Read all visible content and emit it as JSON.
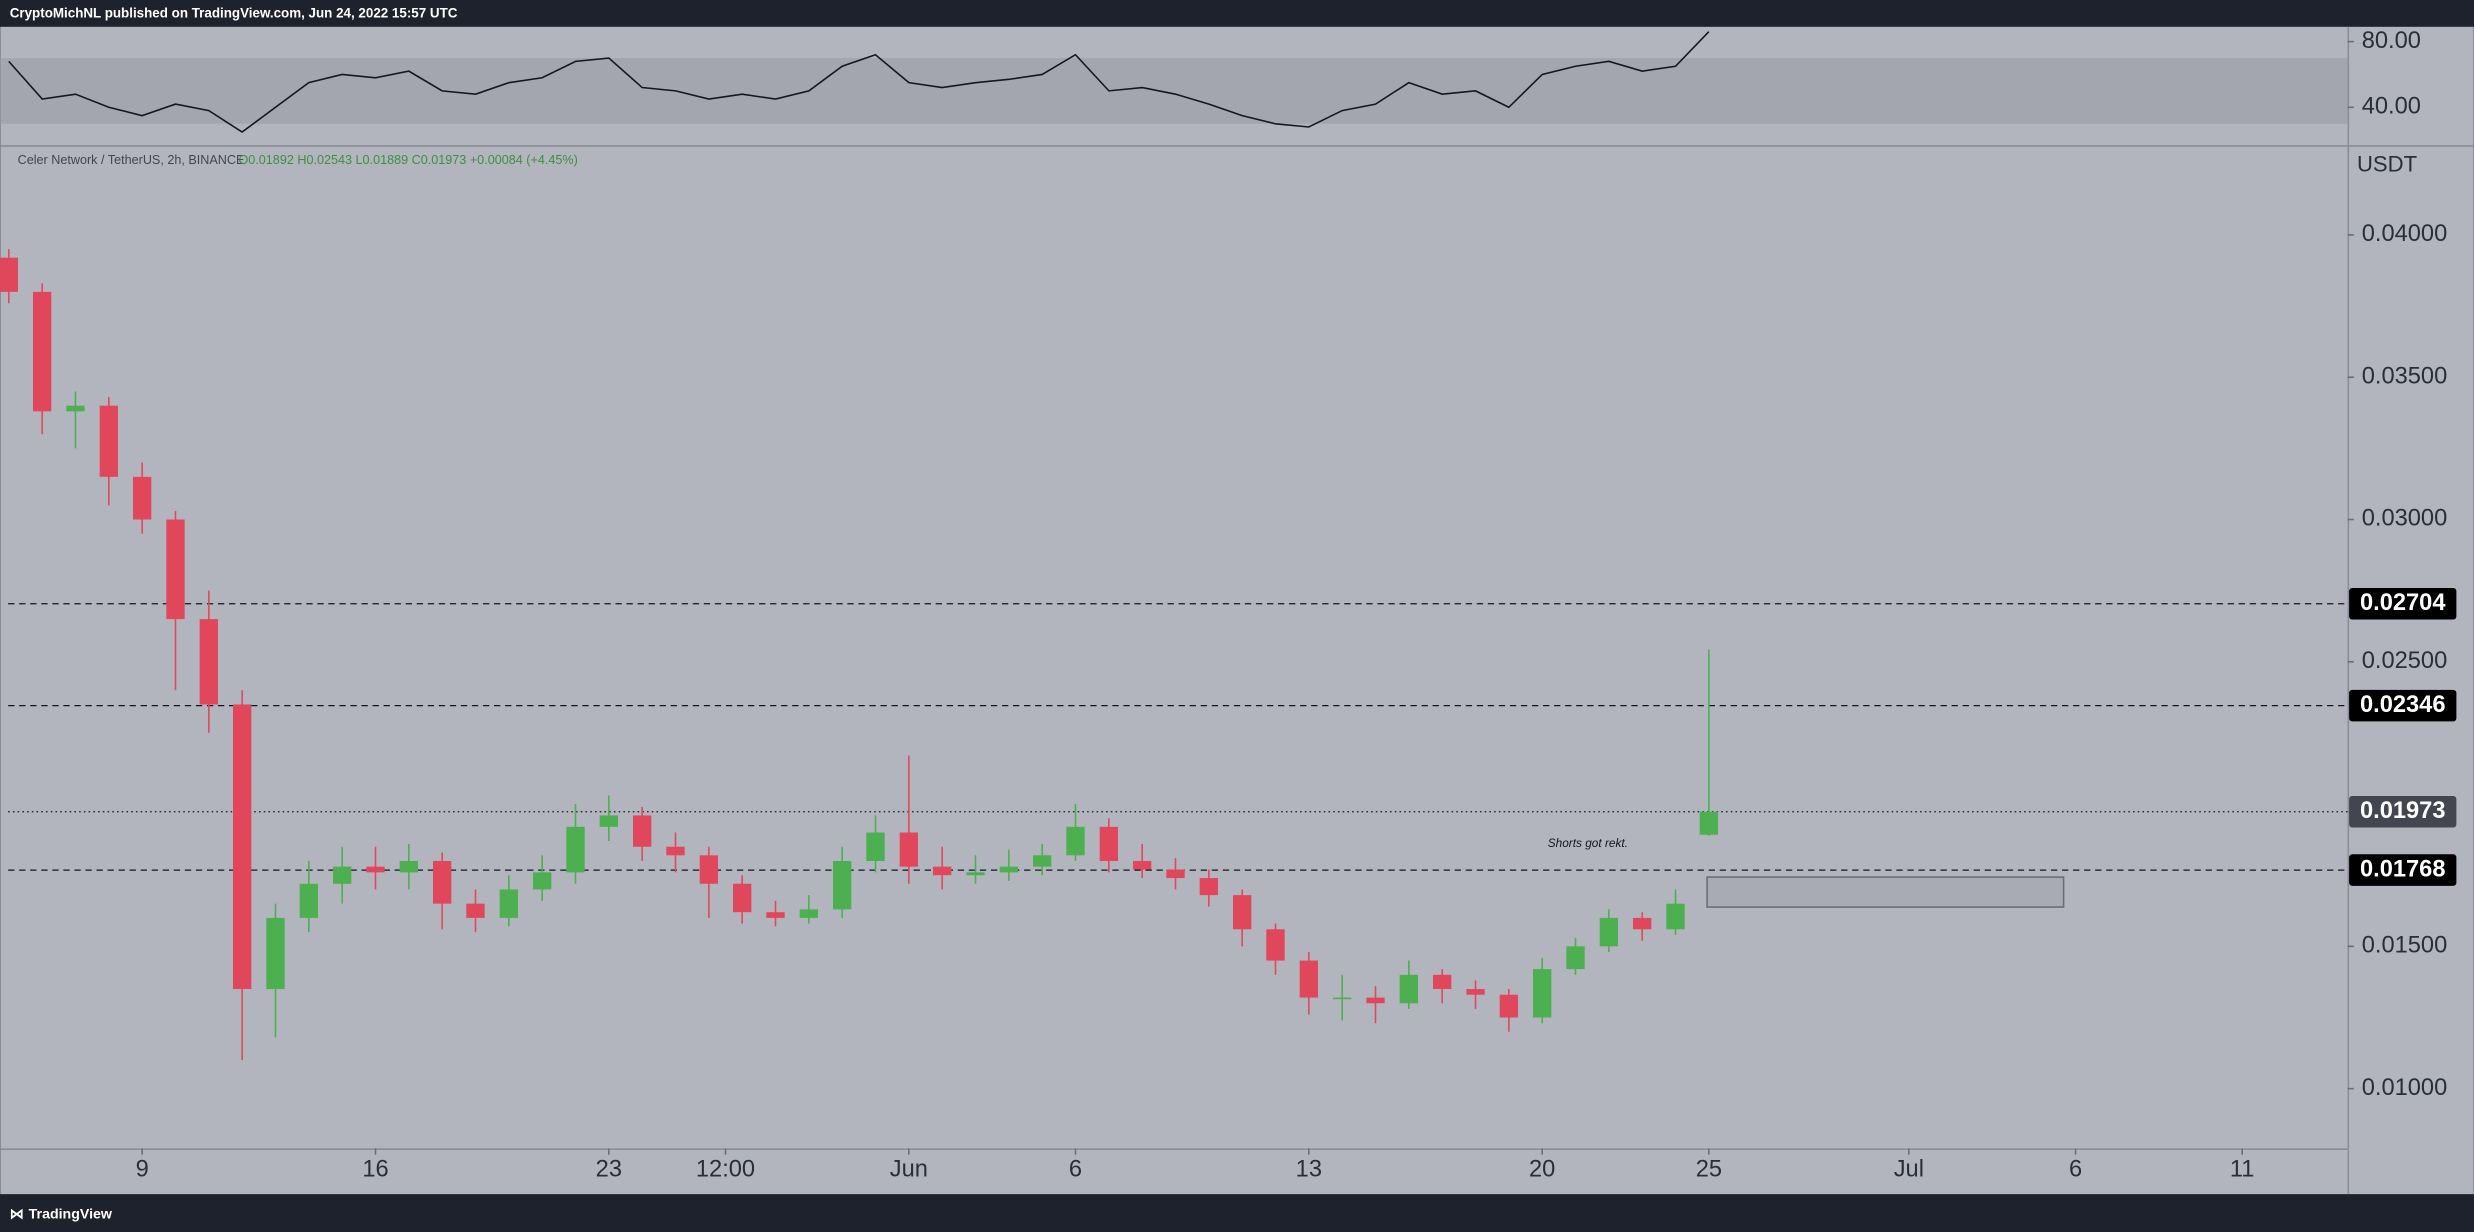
{
  "header": "CryptoMichNL published on TradingView.com, Jun 24, 2022 15:57 UTC",
  "footer": "TradingView",
  "chart_data": [
    {
      "type": "candlestick",
      "title": "Celer Network / TetherUS, 2h, BINANCE",
      "ohlc_label": "O0.01892 H0.02543 L0.01889 C0.01973 +0.00084 (+4.45%)",
      "y_axis_label": "USDT",
      "annotation": "Shorts got rekt.",
      "up_color": "#4caf50",
      "down_color": "#e0475b",
      "x": [
        5,
        6,
        7,
        8,
        9,
        10,
        11,
        12,
        13,
        14,
        15,
        16,
        17,
        18,
        19,
        20,
        21,
        22,
        23,
        24,
        25,
        26,
        27,
        28,
        29,
        30,
        31,
        32,
        33,
        34,
        35,
        36,
        37,
        38,
        39,
        40,
        41,
        42,
        43,
        44,
        45,
        46,
        47,
        48,
        49,
        50,
        51,
        52,
        53,
        54,
        55,
        56
      ],
      "open": [
        0.0392,
        0.038,
        0.0338,
        0.034,
        0.0315,
        0.03,
        0.0265,
        0.0235,
        0.0135,
        0.016,
        0.0172,
        0.0178,
        0.0176,
        0.018,
        0.0165,
        0.016,
        0.017,
        0.0176,
        0.0192,
        0.0196,
        0.0185,
        0.0182,
        0.0172,
        0.0162,
        0.016,
        0.0163,
        0.018,
        0.019,
        0.0178,
        0.0175,
        0.0176,
        0.0178,
        0.0182,
        0.0192,
        0.018,
        0.0177,
        0.0174,
        0.0168,
        0.0156,
        0.0145,
        0.0132,
        0.0132,
        0.013,
        0.014,
        0.0135,
        0.0133,
        0.0125,
        0.0142,
        0.015,
        0.016,
        0.0156,
        0.01892
      ],
      "high": [
        0.0395,
        0.0383,
        0.0345,
        0.0343,
        0.032,
        0.0303,
        0.0275,
        0.024,
        0.0165,
        0.018,
        0.0185,
        0.0185,
        0.0186,
        0.0183,
        0.017,
        0.0175,
        0.0182,
        0.02,
        0.0203,
        0.0199,
        0.019,
        0.0185,
        0.0175,
        0.0166,
        0.0168,
        0.0185,
        0.0196,
        0.0217,
        0.0185,
        0.0182,
        0.0184,
        0.0186,
        0.02,
        0.0195,
        0.0186,
        0.0181,
        0.0177,
        0.017,
        0.0158,
        0.0148,
        0.014,
        0.0136,
        0.0145,
        0.0142,
        0.0138,
        0.0135,
        0.0146,
        0.0153,
        0.0163,
        0.0162,
        0.017,
        0.02543
      ],
      "low": [
        0.0376,
        0.033,
        0.0325,
        0.0305,
        0.0295,
        0.024,
        0.0225,
        0.011,
        0.0118,
        0.0155,
        0.0165,
        0.017,
        0.017,
        0.0156,
        0.0155,
        0.0157,
        0.0166,
        0.0172,
        0.0187,
        0.018,
        0.0176,
        0.016,
        0.0158,
        0.0157,
        0.0158,
        0.016,
        0.0176,
        0.0172,
        0.017,
        0.0172,
        0.0173,
        0.0175,
        0.018,
        0.0176,
        0.0174,
        0.017,
        0.0164,
        0.015,
        0.014,
        0.0126,
        0.0124,
        0.0123,
        0.0128,
        0.013,
        0.0128,
        0.012,
        0.0123,
        0.014,
        0.0148,
        0.0152,
        0.0154,
        0.01889
      ],
      "close": [
        0.038,
        0.0338,
        0.034,
        0.0315,
        0.03,
        0.0265,
        0.0235,
        0.0135,
        0.016,
        0.0172,
        0.0178,
        0.0176,
        0.018,
        0.0165,
        0.016,
        0.017,
        0.0176,
        0.0192,
        0.0196,
        0.0185,
        0.0182,
        0.0172,
        0.0162,
        0.016,
        0.0163,
        0.018,
        0.019,
        0.0178,
        0.0175,
        0.0176,
        0.0178,
        0.0182,
        0.0192,
        0.018,
        0.0177,
        0.0174,
        0.0168,
        0.0156,
        0.0145,
        0.0132,
        0.0132,
        0.013,
        0.014,
        0.0135,
        0.0133,
        0.0125,
        0.0142,
        0.015,
        0.016,
        0.0156,
        0.0165,
        0.01973
      ],
      "levels": [
        {
          "value": 0.02704,
          "style": "dashed",
          "color": "#000000"
        },
        {
          "value": 0.02346,
          "style": "dashed",
          "color": "#000000"
        },
        {
          "value": 0.01973,
          "style": "dotted",
          "color": "#434651"
        },
        {
          "value": 0.01768,
          "style": "dashed",
          "color": "#000000"
        }
      ],
      "xlim": [
        4.98,
        75.16
      ],
      "xticks": [
        9,
        16,
        23,
        {
          "value": 26.5,
          "label": "12:00"
        },
        {
          "value": 32,
          "label": "Jun"
        },
        {
          "value": 37,
          "label": "6"
        },
        {
          "value": 44,
          "label": "13"
        },
        {
          "value": 51,
          "label": "20"
        },
        {
          "value": 56,
          "label": "25"
        },
        {
          "value": 62,
          "label": "Jul"
        },
        {
          "value": 67,
          "label": "6"
        },
        {
          "value": 72,
          "label": "11"
        }
      ],
      "ylim": [
        0.0079,
        0.0431
      ],
      "yticks": [
        {
          "value": 0.01,
          "label": "0.01000"
        },
        {
          "value": 0.015,
          "label": "0.01500"
        },
        {
          "value": 0.025,
          "label": "0.02500"
        },
        {
          "value": 0.03,
          "label": "0.03000"
        },
        {
          "value": 0.035,
          "label": "0.03500"
        },
        {
          "value": 0.04,
          "label": "0.04000"
        }
      ]
    },
    {
      "type": "line",
      "color": "#131722",
      "band": [
        30,
        70
      ],
      "x": [
        5,
        6,
        7,
        8,
        9,
        10,
        11,
        12,
        13,
        14,
        15,
        16,
        17,
        18,
        19,
        20,
        21,
        22,
        23,
        24,
        25,
        26,
        27,
        28,
        29,
        30,
        31,
        32,
        33,
        34,
        35,
        36,
        37,
        38,
        39,
        40,
        41,
        42,
        43,
        44,
        45,
        46,
        47,
        48,
        49,
        50,
        51,
        52,
        53,
        54,
        55,
        56
      ],
      "values": [
        68,
        45,
        48,
        40,
        35,
        42,
        38,
        25,
        40,
        55,
        60,
        58,
        62,
        50,
        48,
        55,
        58,
        68,
        70,
        52,
        50,
        45,
        48,
        45,
        50,
        65,
        72,
        55,
        52,
        55,
        57,
        60,
        72,
        50,
        52,
        48,
        42,
        35,
        30,
        28,
        38,
        42,
        55,
        48,
        50,
        40,
        60,
        65,
        68,
        62,
        65,
        86
      ],
      "xlim": [
        4.98,
        75.16
      ],
      "ylim": [
        17,
        89
      ],
      "yticks": [
        {
          "value": 40,
          "label": "40.00"
        },
        {
          "value": 80,
          "label": "80.00"
        }
      ]
    }
  ]
}
